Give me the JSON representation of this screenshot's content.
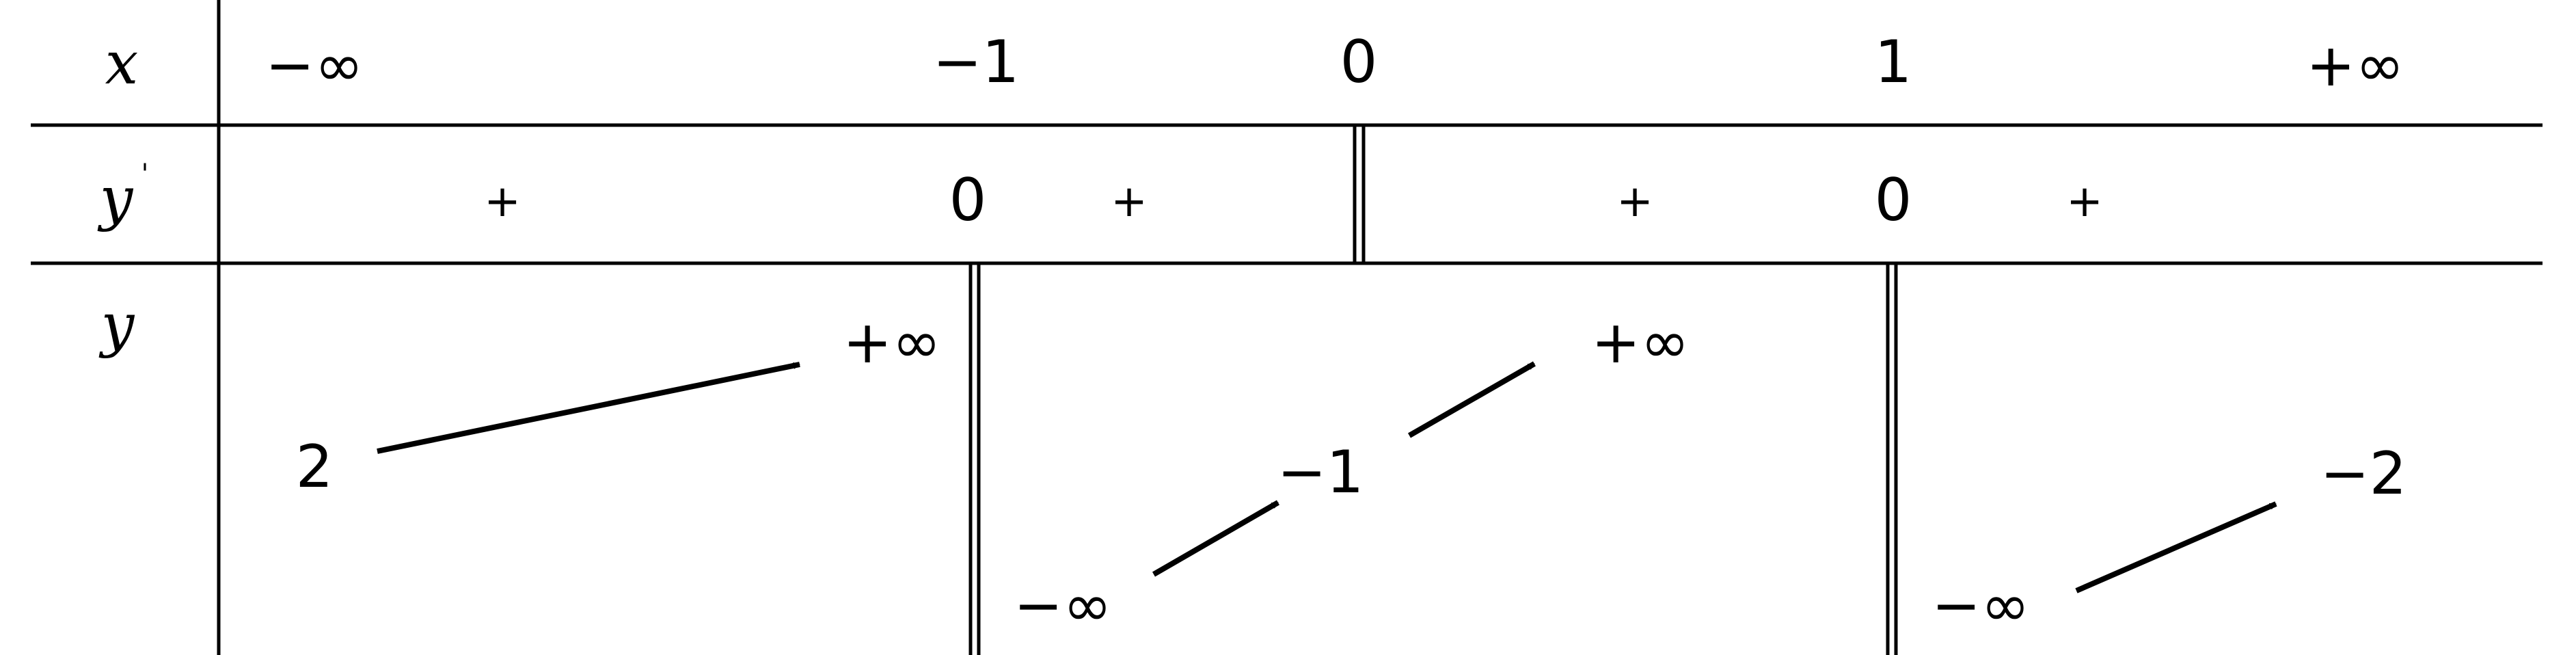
{
  "table": {
    "row_labels": {
      "x": "x",
      "y_prime": "y",
      "prime_mark": "'",
      "y": "y"
    },
    "x_values": [
      "−∞",
      "−1",
      "0",
      "1",
      "+∞"
    ],
    "derivative": {
      "signs": [
        "+",
        "+",
        "+",
        "+"
      ],
      "zeros": [
        "0",
        "0"
      ]
    },
    "y_values": {
      "start": "2",
      "left_of_minus1": "+∞",
      "right_of_minus1": "−∞",
      "at_zero": "−1",
      "left_of_1": "+∞",
      "right_of_1": "−∞",
      "end": "−2"
    }
  }
}
